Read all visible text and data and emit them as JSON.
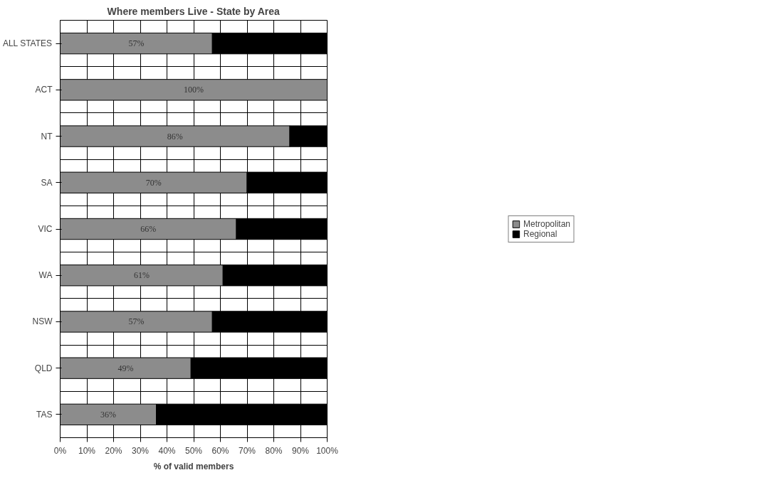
{
  "chart_data": {
    "type": "bar",
    "orientation": "horizontal",
    "stacked": true,
    "title": "Where members Live - State by Area",
    "xlabel": "% of valid members",
    "categories": [
      "ALL STATES",
      "ACT",
      "NT",
      "SA",
      "VIC",
      "WA",
      "NSW",
      "QLD",
      "TAS"
    ],
    "series": [
      {
        "name": "Metropolitan",
        "color": "#8c8c8c",
        "values": [
          57,
          100,
          86,
          70,
          66,
          61,
          57,
          49,
          36
        ],
        "value_labels": [
          "57%",
          "100%",
          "86%",
          "70%",
          "66%",
          "61%",
          "57%",
          "49%",
          "36%"
        ]
      },
      {
        "name": "Regional",
        "color": "#000000",
        "values": [
          43,
          0,
          14,
          30,
          34,
          39,
          43,
          51,
          64
        ]
      }
    ],
    "xlim": [
      0,
      100
    ],
    "xticks": [
      {
        "value": 0,
        "label": "0%"
      },
      {
        "value": 10,
        "label": "10%"
      },
      {
        "value": 20,
        "label": "20%"
      },
      {
        "value": 30,
        "label": "30%"
      },
      {
        "value": 40,
        "label": "40%"
      },
      {
        "value": 50,
        "label": "50%"
      },
      {
        "value": 60,
        "label": "60%"
      },
      {
        "value": 70,
        "label": "70%"
      },
      {
        "value": 80,
        "label": "80%"
      },
      {
        "value": 90,
        "label": "90%"
      },
      {
        "value": 100,
        "label": "100%"
      }
    ],
    "grid": true,
    "legend": "right"
  }
}
